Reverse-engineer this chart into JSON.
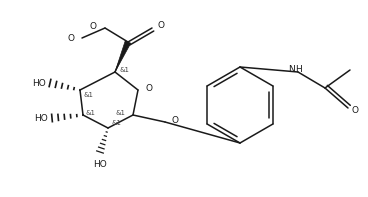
{
  "background": "#ffffff",
  "line_color": "#1a1a1a",
  "line_width": 1.1,
  "font_size": 6.5,
  "stereo_font_size": 5.0,
  "figsize": [
    3.68,
    1.97
  ],
  "dpi": 100,
  "xlim": [
    0,
    368
  ],
  "ylim": [
    0,
    197
  ]
}
